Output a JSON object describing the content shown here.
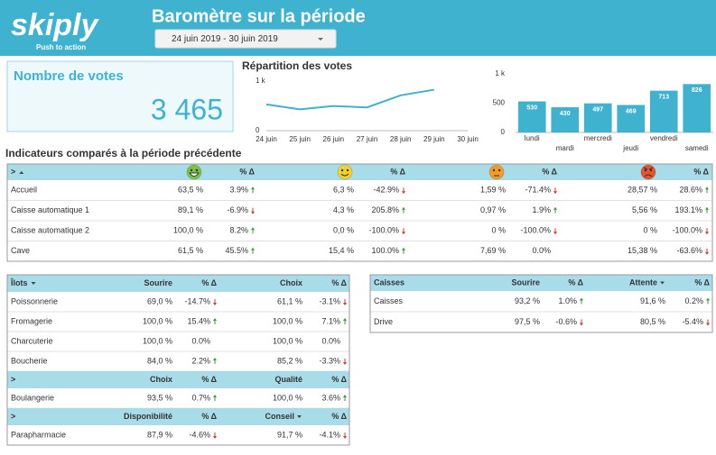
{
  "header": {
    "logo": "skiply",
    "tagline": "Push to action",
    "title": "Baromètre sur la période",
    "period": "24 juin 2019 - 30 juin 2019"
  },
  "kpi": {
    "label": "Nombre de votes",
    "value": "3 465"
  },
  "line_chart": {
    "type": "line",
    "title": "Répartition des votes",
    "color": "#3fb2cf",
    "categories": [
      "24 juin",
      "25 juin",
      "26 juin",
      "27 juin",
      "28 juin",
      "29 juin",
      "30 juin"
    ],
    "values": [
      530,
      430,
      497,
      469,
      713,
      826,
      null
    ],
    "ylim": [
      0,
      1000
    ],
    "yticks": [
      0,
      {
        "value": 1000,
        "label": "1 k"
      }
    ]
  },
  "bar_chart": {
    "type": "bar",
    "color": "#3fb2cf",
    "categories": [
      "lundi",
      "mardi",
      "mercredi",
      "jeudi",
      "vendredi",
      "samedi"
    ],
    "values": [
      530,
      430,
      497,
      469,
      713,
      826
    ],
    "ylim": [
      0,
      1000
    ],
    "yticks": [
      0,
      500,
      {
        "value": 1000,
        "label": "1 k"
      }
    ]
  },
  "indicators": {
    "title": "Indicateurs comparés à la période précédente",
    "sections": [
      {
        "header": {
          "label": ">",
          "sort": true,
          "columns": [
            {
              "face": "#7cc242",
              "delta": "% Δ"
            },
            {
              "face": "#f3d22a",
              "delta": "% Δ"
            },
            {
              "face": "#f39a2b",
              "delta": "% Δ"
            },
            {
              "face": "#e8522f",
              "delta": "% Δ"
            }
          ]
        },
        "rows": [
          {
            "label": "Accueil",
            "cells": [
              {
                "value": "63,5 %",
                "delta": "3.9%",
                "trend": "up"
              },
              {
                "value": "6,3 %",
                "delta": "-42.9%",
                "trend": "down"
              },
              {
                "value": "1,59 %",
                "delta": "-71.4%",
                "trend": "down"
              },
              {
                "value": "28,57 %",
                "delta": "28.6%",
                "trend": "up"
              }
            ]
          },
          {
            "label": "Caisse automatique 1",
            "cells": [
              {
                "value": "89,1 %",
                "delta": "-6.9%",
                "trend": "down"
              },
              {
                "value": "4,3 %",
                "delta": "205.8%",
                "trend": "up"
              },
              {
                "value": "0,97 %",
                "delta": "1.9%",
                "trend": "up"
              },
              {
                "value": "5,56 %",
                "delta": "193.1%",
                "trend": "up"
              }
            ]
          },
          {
            "label": "Caisse automatique 2",
            "cells": [
              {
                "value": "100,0 %",
                "delta": "8.2%",
                "trend": "up"
              },
              {
                "value": "0,0 %",
                "delta": "-100.0%",
                "trend": "down"
              },
              {
                "value": "0 %",
                "delta": "-100.0%",
                "trend": "down"
              },
              {
                "value": "0 %",
                "delta": "-100.0%",
                "trend": "down"
              }
            ]
          },
          {
            "label": "Cave",
            "cells": [
              {
                "value": "61,5 %",
                "delta": "45.5%",
                "trend": "up"
              },
              {
                "value": "15,4 %",
                "delta": "100.0%",
                "trend": "up"
              },
              {
                "value": "7,69 %",
                "delta": "0.0%"
              },
              {
                "value": "15,38 %",
                "delta": "-63.6%",
                "trend": "down"
              }
            ]
          }
        ]
      }
    ]
  },
  "ilots": {
    "sections": [
      {
        "header": {
          "label": "Îlots",
          "sort": true,
          "columns": [
            {
              "name": "Sourire",
              "delta": "% Δ"
            },
            {
              "name": "Choix",
              "delta": "% Δ"
            }
          ]
        },
        "rows": [
          {
            "label": "Poissonnerie",
            "cells": [
              {
                "value": "69,0 %",
                "delta": "-14.7%",
                "trend": "down"
              },
              {
                "value": "61,1 %",
                "delta": "-3.1%",
                "trend": "down"
              }
            ]
          },
          {
            "label": "Fromagerie",
            "cells": [
              {
                "value": "100,0 %",
                "delta": "15.4%",
                "trend": "up"
              },
              {
                "value": "100,0 %",
                "delta": "7.1%",
                "trend": "up"
              }
            ]
          },
          {
            "label": "Charcuterie",
            "cells": [
              {
                "value": "100,0 %",
                "delta": "0.0%"
              },
              {
                "value": "100,0 %",
                "delta": "0.0%"
              }
            ]
          },
          {
            "label": "Boucherie",
            "cells": [
              {
                "value": "84,0 %",
                "delta": "2.2%",
                "trend": "up"
              },
              {
                "value": "85,2 %",
                "delta": "-3.3%",
                "trend": "down"
              }
            ]
          }
        ]
      },
      {
        "header": {
          "label": ">",
          "columns": [
            {
              "name": "Choix",
              "delta": "% Δ"
            },
            {
              "name": "Qualité",
              "delta": "% Δ"
            }
          ]
        },
        "rows": [
          {
            "label": "Boulangerie",
            "cells": [
              {
                "value": "93,5 %",
                "delta": "0.7%",
                "trend": "up"
              },
              {
                "value": "100,0 %",
                "delta": "3.6%",
                "trend": "up"
              }
            ]
          }
        ]
      },
      {
        "header": {
          "label": ">",
          "columns": [
            {
              "name": "Disponibilité",
              "delta": "% Δ"
            },
            {
              "name": "Conseil",
              "delta": "% Δ",
              "sort": true
            }
          ]
        },
        "rows": [
          {
            "label": "Parapharmacie",
            "cells": [
              {
                "value": "87,9 %",
                "delta": "-4.6%",
                "trend": "down"
              },
              {
                "value": "91,7 %",
                "delta": "-4.1%",
                "trend": "down"
              }
            ]
          }
        ]
      }
    ]
  },
  "caisses": {
    "sections": [
      {
        "header": {
          "label": "Caisses",
          "columns": [
            {
              "name": "Sourire",
              "delta": "% Δ"
            },
            {
              "name": "Attente",
              "delta": "% Δ",
              "sort": true
            }
          ]
        },
        "rows": [
          {
            "label": "Caisses",
            "cells": [
              {
                "value": "93,2 %",
                "delta": "1.0%",
                "trend": "up"
              },
              {
                "value": "91,6 %",
                "delta": "0.2%",
                "trend": "up"
              }
            ]
          },
          {
            "label": "Drive",
            "cells": [
              {
                "value": "97,5 %",
                "delta": "-0.6%",
                "trend": "down"
              },
              {
                "value": "80,5 %",
                "delta": "-5.4%",
                "trend": "down"
              }
            ]
          }
        ]
      }
    ]
  }
}
